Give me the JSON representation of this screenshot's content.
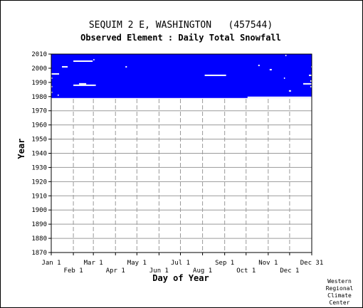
{
  "chart_data": {
    "type": "heatmap",
    "title": "SEQUIM 2 E, WASHINGTON   (457544)",
    "subtitle": "Observed Element : Daily Total Snowfall",
    "xlabel": "Day of Year",
    "ylabel": "Year",
    "xlim": [
      1,
      366
    ],
    "ylim": [
      1870,
      2010
    ],
    "y_ticks": [
      1870,
      1880,
      1890,
      1900,
      1910,
      1920,
      1930,
      1940,
      1950,
      1960,
      1970,
      1980,
      1990,
      2000,
      2010
    ],
    "x_ticks_top_row": [
      {
        "label": "Jan 1",
        "day": 1
      },
      {
        "label": "Mar 1",
        "day": 60
      },
      {
        "label": "May 1",
        "day": 121
      },
      {
        "label": "Jul 1",
        "day": 182
      },
      {
        "label": "Sep 1",
        "day": 244
      },
      {
        "label": "Nov 1",
        "day": 305
      },
      {
        "label": "Dec 31",
        "day": 366
      }
    ],
    "x_ticks_bottom_row": [
      {
        "label": "Feb 1",
        "day": 32
      },
      {
        "label": "Apr 1",
        "day": 91
      },
      {
        "label": "Jun 1",
        "day": 152
      },
      {
        "label": "Aug 1",
        "day": 213
      },
      {
        "label": "Oct 1",
        "day": 274
      },
      {
        "label": "Dec 1",
        "day": 335
      }
    ],
    "grid": true,
    "series": [
      {
        "name": "",
        "color": "#0000ff",
        "coverage": {
          "year_start": 1980,
          "year_end": 2010,
          "day_start": 1,
          "day_end": 366
        },
        "missing_segments": [
          {
            "year": 1979.5,
            "day_start": 276,
            "day_end": 366
          },
          {
            "year": 1981,
            "day_start": 10,
            "day_end": 11
          },
          {
            "year": 1983,
            "day_start": 1,
            "day_end": 2
          },
          {
            "year": 1984,
            "day_start": 334,
            "day_end": 337
          },
          {
            "year": 1987,
            "day_start": 1,
            "day_end": 2
          },
          {
            "year": 1987,
            "day_start": 364,
            "day_end": 366
          },
          {
            "year": 1988,
            "day_start": 32,
            "day_end": 62
          },
          {
            "year": 1988,
            "day_start": 62,
            "day_end": 63
          },
          {
            "year": 1989,
            "day_start": 40,
            "day_end": 50
          },
          {
            "year": 1989,
            "day_start": 354,
            "day_end": 366
          },
          {
            "year": 1991,
            "day_start": 364,
            "day_end": 366
          },
          {
            "year": 1993,
            "day_start": 327,
            "day_end": 328
          },
          {
            "year": 1993,
            "day_start": 1,
            "day_end": 2
          },
          {
            "year": 1995,
            "day_start": 216,
            "day_end": 246
          },
          {
            "year": 1995,
            "day_start": 362,
            "day_end": 366
          },
          {
            "year": 1996,
            "day_start": 1,
            "day_end": 12
          },
          {
            "year": 1999,
            "day_start": 307,
            "day_end": 310
          },
          {
            "year": 2001,
            "day_start": 16,
            "day_end": 24
          },
          {
            "year": 2001,
            "day_start": 105,
            "day_end": 107
          },
          {
            "year": 2002,
            "day_start": 291,
            "day_end": 293
          },
          {
            "year": 2005,
            "day_start": 32,
            "day_end": 59
          },
          {
            "year": 2009,
            "day_start": 329,
            "day_end": 330
          },
          {
            "year": 2001,
            "day_start": 365,
            "day_end": 366
          },
          {
            "year": 2006,
            "day_start": 60,
            "day_end": 61
          }
        ]
      }
    ]
  },
  "credit": [
    "Western",
    "Regional",
    "Climate",
    "Center"
  ]
}
